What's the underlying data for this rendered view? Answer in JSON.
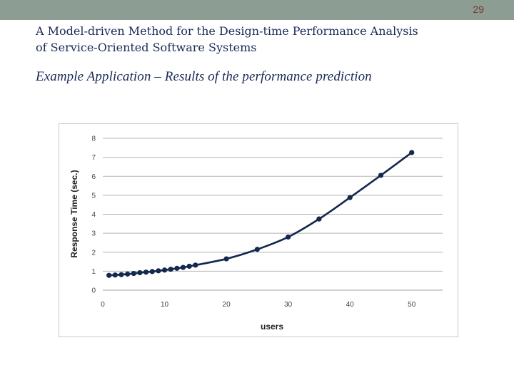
{
  "header": {
    "page_number": "29",
    "title_line1": "A Model-driven Method for the Design-time Performance Analysis",
    "title_line2": "of Service-Oriented Software Systems",
    "subtitle": "Example Application – Results of the performance prediction"
  },
  "colors": {
    "band": "#8c9d94",
    "title": "#1a2a56",
    "series": "#13284d",
    "grid": "#b4b4b4"
  },
  "chart_data": {
    "type": "line",
    "title": "",
    "xlabel": "users",
    "ylabel": "Response Time (sec.)",
    "xlim": [
      0,
      55
    ],
    "ylim": [
      0,
      8
    ],
    "xticks": [
      0,
      10,
      20,
      30,
      40,
      50
    ],
    "yticks": [
      0,
      1,
      2,
      3,
      4,
      5,
      6,
      7,
      8
    ],
    "grid": "horizontal",
    "legend": "none",
    "series": [
      {
        "markers": true,
        "x": [
          1,
          2,
          3,
          4,
          5,
          6,
          7,
          8,
          9,
          10,
          11,
          12,
          13,
          14,
          15,
          20,
          25,
          30,
          35,
          40,
          45,
          50
        ],
        "y": [
          0.78,
          0.8,
          0.82,
          0.85,
          0.88,
          0.92,
          0.95,
          0.98,
          1.02,
          1.06,
          1.1,
          1.15,
          1.2,
          1.26,
          1.32,
          1.65,
          2.15,
          2.8,
          3.75,
          4.88,
          6.05,
          7.25
        ]
      }
    ]
  }
}
